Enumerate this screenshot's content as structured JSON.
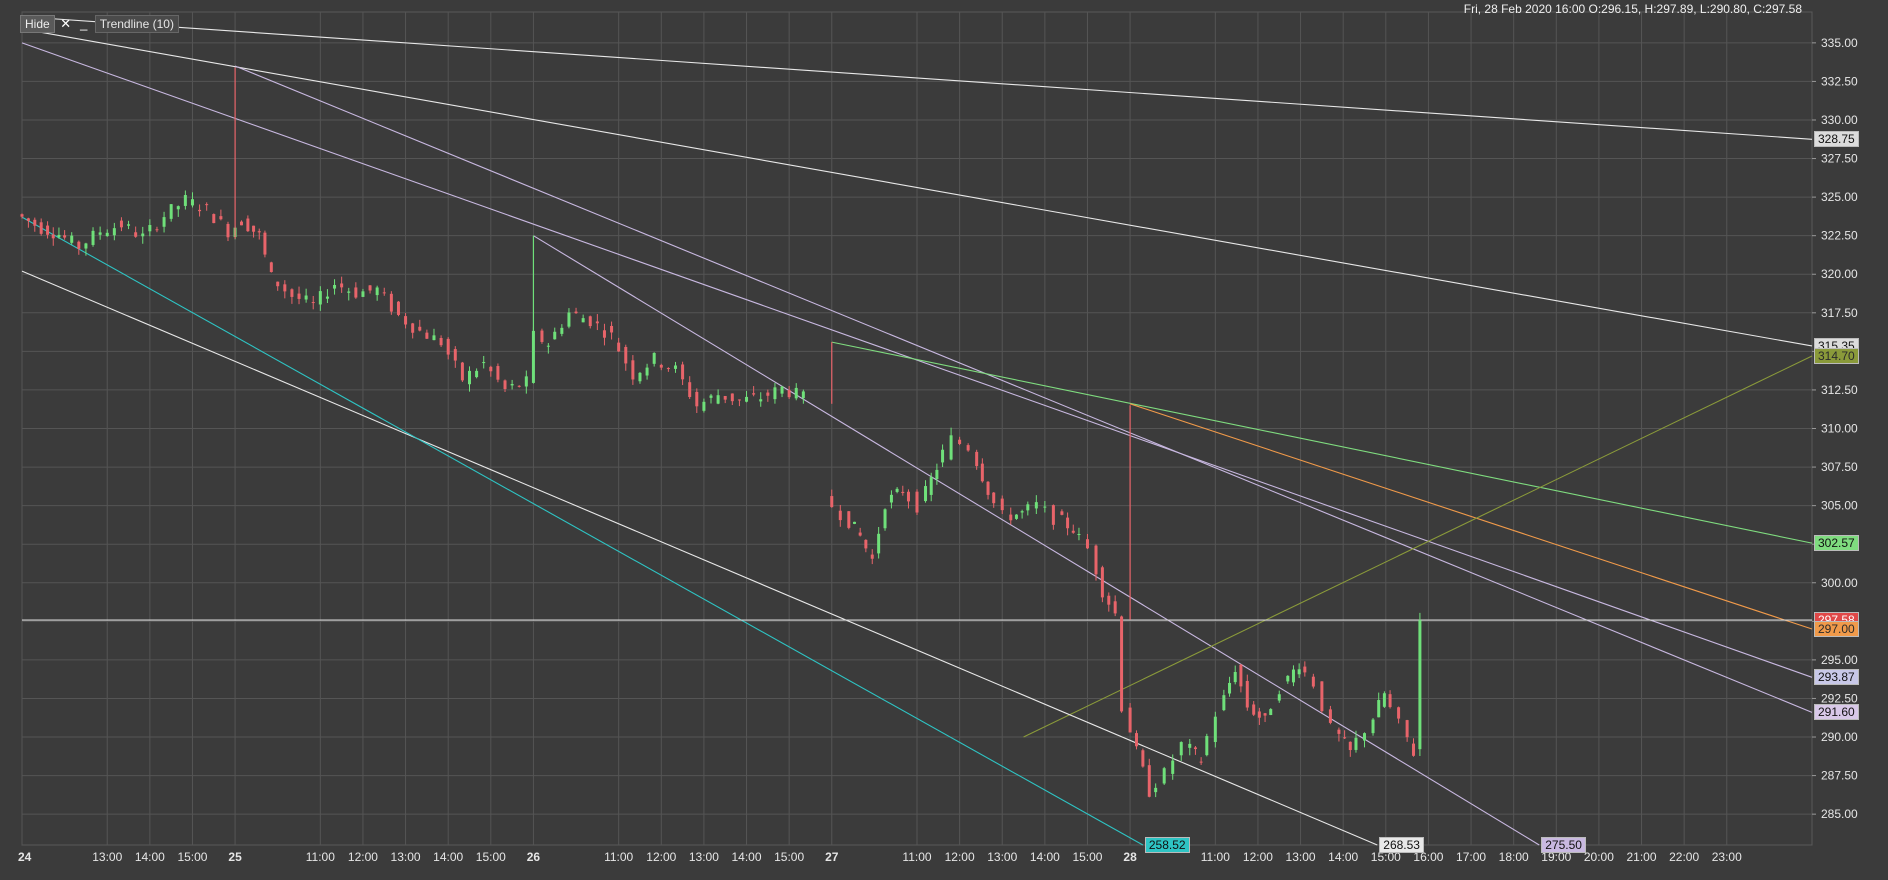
{
  "toolbar": {
    "hide_label": "Hide",
    "close_icon": "close-icon",
    "minimize_icon": "minimize-icon",
    "indicator_label": "Trendline  (10)"
  },
  "header": {
    "ohlc": "Fri, 28 Feb 2020 16:00  O:296.15, H:297.89, L:290.80, C:297.58"
  },
  "colors": {
    "background": "#3b3b3b",
    "grid": "#555555",
    "up": "#6fe07a",
    "down": "#e8646a"
  },
  "chart_data": {
    "type": "candlestick",
    "ylim": [
      283,
      337
    ],
    "y_ticks": [
      "335.00",
      "332.50",
      "330.00",
      "327.50",
      "325.00",
      "322.50",
      "320.00",
      "317.50",
      "315.00",
      "312.50",
      "310.00",
      "307.50",
      "305.00",
      "302.50",
      "300.00",
      "297.50",
      "295.00",
      "292.50",
      "290.00",
      "287.50",
      "285.00"
    ],
    "x_ticks": [
      {
        "label": "24",
        "bold": true,
        "t": 0
      },
      {
        "label": "13:00",
        "t": 2
      },
      {
        "label": "14:00",
        "t": 3
      },
      {
        "label": "15:00",
        "t": 4
      },
      {
        "label": "25",
        "bold": true,
        "t": 5
      },
      {
        "label": "11:00",
        "t": 7
      },
      {
        "label": "12:00",
        "t": 8
      },
      {
        "label": "13:00",
        "t": 9
      },
      {
        "label": "14:00",
        "t": 10
      },
      {
        "label": "15:00",
        "t": 11
      },
      {
        "label": "26",
        "bold": true,
        "t": 12
      },
      {
        "label": "11:00",
        "t": 14
      },
      {
        "label": "12:00",
        "t": 15
      },
      {
        "label": "13:00",
        "t": 16
      },
      {
        "label": "14:00",
        "t": 17
      },
      {
        "label": "15:00",
        "t": 18
      },
      {
        "label": "27",
        "bold": true,
        "t": 19
      },
      {
        "label": "11:00",
        "t": 21
      },
      {
        "label": "12:00",
        "t": 22
      },
      {
        "label": "13:00",
        "t": 23
      },
      {
        "label": "14:00",
        "t": 24
      },
      {
        "label": "15:00",
        "t": 25
      },
      {
        "label": "28",
        "bold": true,
        "t": 26
      },
      {
        "label": "11:00",
        "t": 28
      },
      {
        "label": "12:00",
        "t": 29
      },
      {
        "label": "13:00",
        "t": 30
      },
      {
        "label": "14:00",
        "t": 31
      },
      {
        "label": "15:00",
        "t": 32
      },
      {
        "label": "16:00",
        "t": 33
      },
      {
        "label": "17:00",
        "t": 34
      },
      {
        "label": "18:00",
        "t": 35
      },
      {
        "label": "19:00",
        "t": 36
      },
      {
        "label": "20:00",
        "t": 37
      },
      {
        "label": "21:00",
        "t": 38
      },
      {
        "label": "22:00",
        "t": 39
      },
      {
        "label": "23:00",
        "t": 40
      }
    ],
    "price_path": [
      [
        0,
        323.9
      ],
      [
        0.6,
        323.0
      ],
      [
        1,
        322.6
      ],
      [
        1.5,
        321.8
      ],
      [
        2,
        322.8
      ],
      [
        2.5,
        323.2
      ],
      [
        3,
        322.4
      ],
      [
        3.5,
        323.8
      ],
      [
        4,
        324.8
      ],
      [
        4.5,
        324.2
      ],
      [
        5,
        322.8
      ],
      [
        5.3,
        323.5
      ],
      [
        5.7,
        322.5
      ],
      [
        6,
        319.8
      ],
      [
        6.5,
        318.6
      ],
      [
        7,
        318.0
      ],
      [
        7.5,
        319.4
      ],
      [
        8,
        318.8
      ],
      [
        8.5,
        319.0
      ],
      [
        9,
        317.3
      ],
      [
        9.5,
        316.3
      ],
      [
        10,
        315.6
      ],
      [
        10.5,
        313.2
      ],
      [
        11,
        314.2
      ],
      [
        11.5,
        312.5
      ],
      [
        12,
        313.0
      ],
      [
        12.2,
        316.0
      ],
      [
        12.5,
        315.5
      ],
      [
        13,
        317.5
      ],
      [
        13.5,
        317.0
      ],
      [
        14,
        316.0
      ],
      [
        14.5,
        313.5
      ],
      [
        15,
        314.5
      ],
      [
        15.5,
        313.8
      ],
      [
        16,
        311.5
      ],
      [
        16.5,
        312.2
      ],
      [
        17,
        311.8
      ],
      [
        17.5,
        312.0
      ],
      [
        18,
        312.6
      ],
      [
        18.5,
        312.0
      ],
      [
        19,
        305.5
      ],
      [
        19.4,
        304.5
      ],
      [
        19.8,
        303.0
      ],
      [
        20.1,
        301.5
      ],
      [
        20.4,
        305.2
      ],
      [
        20.8,
        306.0
      ],
      [
        21.2,
        305.0
      ],
      [
        21.6,
        307.5
      ],
      [
        22.0,
        309.3
      ],
      [
        22.4,
        308.8
      ],
      [
        22.8,
        306.0
      ],
      [
        23.2,
        304.3
      ],
      [
        23.6,
        304.5
      ],
      [
        24.0,
        305.0
      ],
      [
        24.4,
        304.2
      ],
      [
        24.8,
        303.5
      ],
      [
        25.2,
        302.2
      ],
      [
        25.5,
        299.5
      ],
      [
        25.8,
        298.0
      ],
      [
        26.0,
        292.0
      ],
      [
        26.3,
        289.0
      ],
      [
        26.6,
        286.5
      ],
      [
        27.0,
        287.6
      ],
      [
        27.4,
        289.5
      ],
      [
        27.8,
        288.5
      ],
      [
        28.2,
        291.5
      ],
      [
        28.6,
        294.5
      ],
      [
        28.9,
        292.0
      ],
      [
        29.3,
        291.0
      ],
      [
        29.7,
        293.2
      ],
      [
        30.1,
        294.8
      ],
      [
        30.5,
        293.5
      ],
      [
        30.9,
        290.5
      ],
      [
        31.3,
        289.0
      ],
      [
        31.7,
        290.5
      ],
      [
        32.1,
        292.8
      ],
      [
        32.5,
        290.8
      ],
      [
        32.8,
        289.0
      ],
      [
        33.0,
        297.58
      ]
    ],
    "red_spikes": [
      {
        "t": 5,
        "lo": 322.3,
        "hi": 333.4
      },
      {
        "t": 19,
        "lo": 311.6,
        "hi": 315.6
      },
      {
        "t": 26,
        "lo": 297.6,
        "hi": 311.5
      }
    ],
    "green_spikes": [
      {
        "t": 12,
        "lo": 313.0,
        "hi": 322.5
      }
    ],
    "trendlines": [
      {
        "name": "trendline-top",
        "color": "#e8e8e8",
        "p1": [
          0,
          336.7
        ],
        "p2": [
          42,
          328.75
        ]
      },
      {
        "name": "trendline-upper-white",
        "color": "#e8e8e8",
        "p1": [
          0,
          335.9
        ],
        "p2": [
          42,
          315.35
        ]
      },
      {
        "name": "trendline-lavender-a",
        "color": "#c8b8e0",
        "p1": [
          0,
          335.0
        ],
        "p2": [
          42,
          293.87
        ]
      },
      {
        "name": "trendline-lavender-b",
        "color": "#c8b8e0",
        "p1": [
          5,
          333.5
        ],
        "p2": [
          42,
          291.6
        ]
      },
      {
        "name": "trendline-lavender-c",
        "color": "#c8b8e0",
        "p1": [
          12,
          322.5
        ],
        "p2": [
          35.6,
          283.0
        ]
      },
      {
        "name": "trendline-green",
        "color": "#7fdc7f",
        "p1": [
          19,
          315.6
        ],
        "p2": [
          42,
          302.57
        ]
      },
      {
        "name": "trendline-orange",
        "color": "#f09a4a",
        "p1": [
          26,
          311.6
        ],
        "p2": [
          42,
          297.0
        ]
      },
      {
        "name": "trendline-olive",
        "color": "#8a9a3a",
        "p1": [
          23.5,
          290.0
        ],
        "p2": [
          42,
          314.7
        ]
      },
      {
        "name": "trendline-white-lower",
        "color": "#e8e8e8",
        "p1": [
          0,
          320.2
        ],
        "p2": [
          31.8,
          283.0
        ]
      },
      {
        "name": "trendline-cyan",
        "color": "#2ec4c4",
        "p1": [
          0,
          323.7
        ],
        "p2": [
          26.3,
          283.0
        ]
      },
      {
        "name": "last-price-line",
        "color": "#d8d8d8",
        "p1": [
          0,
          297.58
        ],
        "p2": [
          42,
          297.58
        ]
      }
    ],
    "price_badges": [
      {
        "value": "328.75",
        "bg": "#dcdcdc",
        "fg": "#111111"
      },
      {
        "value": "315.35",
        "bg": "#dcdcdc",
        "fg": "#111111"
      },
      {
        "value": "314.70",
        "bg": "#8a9a3a",
        "fg": "#2b2b2b"
      },
      {
        "value": "302.57",
        "bg": "#7fdc7f",
        "fg": "#111111"
      },
      {
        "value": "297.58",
        "bg": "#e04848",
        "fg": "#ffffff"
      },
      {
        "value": "297.00",
        "bg": "#f09a4a",
        "fg": "#2b2b2b"
      },
      {
        "value": "293.87",
        "bg": "#c8c8e8",
        "fg": "#111111"
      },
      {
        "value": "291.60",
        "bg": "#d8c8e8",
        "fg": "#111111"
      }
    ],
    "time_badges": [
      {
        "value": "258.52",
        "t": 26.3,
        "bg": "#2ec4c4",
        "fg": "#111111"
      },
      {
        "value": "268.53",
        "t": 31.8,
        "bg": "#e8e8e8",
        "fg": "#111111"
      },
      {
        "value": "275.50",
        "t": 35.6,
        "bg": "#c8b8e0",
        "fg": "#111111"
      }
    ]
  }
}
